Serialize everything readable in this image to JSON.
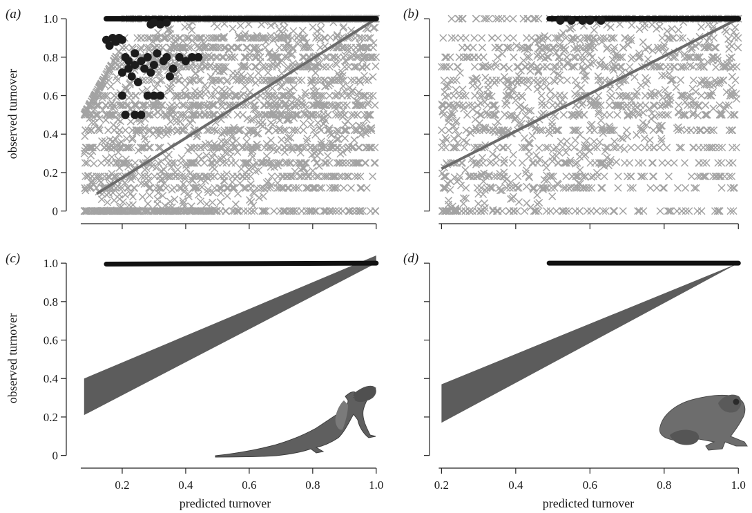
{
  "colors": {
    "null_marker": "#a3a3a3",
    "observed_point": "#1c1c1c",
    "fit_line": "#6b6b6b",
    "band": "#5c5c5c",
    "black_line": "#111111"
  },
  "icons": [
    "lizard-illustration",
    "frog-illustration"
  ],
  "chart_data": [
    {
      "id": "a",
      "label": "(a)",
      "type": "scatter",
      "ylabel": "observed turnover",
      "xlabel": "",
      "xlim": [
        0.05,
        1.02
      ],
      "ylim": [
        -0.03,
        1.04
      ],
      "x_ticks": [
        0.2,
        0.4,
        0.6,
        0.8,
        1.0
      ],
      "x_tick_labels": [
        "",
        "",
        "",
        "",
        ""
      ],
      "y_ticks": [
        0,
        0.2,
        0.4,
        0.6,
        0.8,
        1.0
      ],
      "y_tick_labels": [
        "0",
        "0.2",
        "0.4",
        "0.6",
        "0.8",
        "1.0"
      ],
      "null_marker": "x",
      "null_cloud": {
        "x_range": [
          0.08,
          1.0
        ],
        "y_range": [
          0.0,
          1.0
        ]
      },
      "observed_points": [
        [
          0.15,
          0.89
        ],
        [
          0.16,
          0.86
        ],
        [
          0.17,
          0.9
        ],
        [
          0.18,
          0.88
        ],
        [
          0.19,
          0.9
        ],
        [
          0.2,
          0.89
        ],
        [
          0.2,
          0.72
        ],
        [
          0.21,
          0.8
        ],
        [
          0.22,
          0.78
        ],
        [
          0.23,
          0.7
        ],
        [
          0.24,
          0.82
        ],
        [
          0.24,
          0.76
        ],
        [
          0.25,
          0.67
        ],
        [
          0.26,
          0.78
        ],
        [
          0.27,
          0.74
        ],
        [
          0.28,
          0.8
        ],
        [
          0.29,
          0.72
        ],
        [
          0.3,
          0.76
        ],
        [
          0.31,
          0.82
        ],
        [
          0.32,
          0.6
        ],
        [
          0.33,
          0.78
        ],
        [
          0.34,
          0.8
        ],
        [
          0.35,
          0.7
        ],
        [
          0.36,
          0.74
        ],
        [
          0.38,
          0.8
        ],
        [
          0.4,
          0.78
        ],
        [
          0.42,
          0.8
        ],
        [
          0.44,
          0.8
        ],
        [
          0.2,
          0.6
        ],
        [
          0.21,
          0.5
        ],
        [
          0.24,
          0.5
        ],
        [
          0.26,
          0.5
        ],
        [
          0.28,
          0.6
        ],
        [
          0.3,
          0.6
        ],
        [
          0.22,
          0.74
        ],
        [
          0.29,
          0.97
        ],
        [
          0.3,
          0.98
        ],
        [
          0.32,
          0.97
        ],
        [
          0.34,
          0.98
        ]
      ],
      "observed_line": {
        "x": [
          0.15,
          1.0
        ],
        "y": [
          1.0,
          1.0
        ]
      },
      "fit_line": {
        "x": [
          0.12,
          1.0
        ],
        "y": [
          0.09,
          1.0
        ]
      }
    },
    {
      "id": "b",
      "label": "(b)",
      "type": "scatter",
      "ylabel": "",
      "xlabel": "",
      "xlim": [
        0.19,
        1.02
      ],
      "ylim": [
        -0.03,
        1.04
      ],
      "x_ticks": [
        0.2,
        0.4,
        0.6,
        0.8,
        1.0
      ],
      "x_tick_labels": [
        "",
        "",
        "",
        "",
        ""
      ],
      "y_ticks": [
        0,
        0.2,
        0.4,
        0.6,
        0.8,
        1.0
      ],
      "y_tick_labels": [
        "",
        "",
        "",
        "",
        "",
        ""
      ],
      "null_marker": "x",
      "null_cloud": {
        "x_range": [
          0.2,
          1.0
        ],
        "y_range": [
          0.0,
          1.0
        ]
      },
      "observed_points": [
        [
          0.52,
          0.99
        ],
        [
          0.55,
          0.99
        ],
        [
          0.58,
          0.99
        ],
        [
          0.6,
          0.99
        ],
        [
          0.63,
          0.99
        ]
      ],
      "observed_line": {
        "x": [
          0.49,
          1.0
        ],
        "y": [
          1.0,
          1.0
        ]
      },
      "fit_line": {
        "x": [
          0.2,
          1.0
        ],
        "y": [
          0.22,
          1.0
        ]
      }
    },
    {
      "id": "c",
      "label": "(c)",
      "type": "area",
      "ylabel": "observed turnover",
      "xlabel": "predicted turnover",
      "xlim": [
        0.05,
        1.02
      ],
      "ylim": [
        -0.03,
        1.04
      ],
      "x_ticks": [
        0.2,
        0.4,
        0.6,
        0.8,
        1.0
      ],
      "x_tick_labels": [
        "0.2",
        "0.4",
        "0.6",
        "0.8",
        "1.0"
      ],
      "y_ticks": [
        0,
        0.2,
        0.4,
        0.6,
        0.8,
        1.0
      ],
      "y_tick_labels": [
        "0",
        "0.2",
        "0.4",
        "0.6",
        "0.8",
        "1.0"
      ],
      "band": {
        "x": [
          0.08,
          1.0
        ],
        "upper": [
          0.4,
          1.04
        ],
        "lower": [
          0.21,
          1.0
        ]
      },
      "observed_line": {
        "x": [
          0.15,
          1.0
        ],
        "y": [
          0.995,
          1.0
        ]
      }
    },
    {
      "id": "d",
      "label": "(d)",
      "type": "area",
      "ylabel": "",
      "xlabel": "predicted turnover",
      "xlim": [
        0.19,
        1.02
      ],
      "ylim": [
        -0.03,
        1.04
      ],
      "x_ticks": [
        0.2,
        0.4,
        0.6,
        0.8,
        1.0
      ],
      "x_tick_labels": [
        "0.2",
        "0.4",
        "0.6",
        "0.8",
        "1.0"
      ],
      "y_ticks": [
        0,
        0.2,
        0.4,
        0.6,
        0.8,
        1.0
      ],
      "y_tick_labels": [
        "",
        "",
        "",
        "",
        "",
        ""
      ],
      "band": {
        "x": [
          0.2,
          1.0
        ],
        "upper": [
          0.37,
          1.0
        ],
        "lower": [
          0.17,
          1.0
        ]
      },
      "observed_line": {
        "x": [
          0.49,
          1.0
        ],
        "y": [
          1.0,
          1.0
        ]
      }
    }
  ]
}
